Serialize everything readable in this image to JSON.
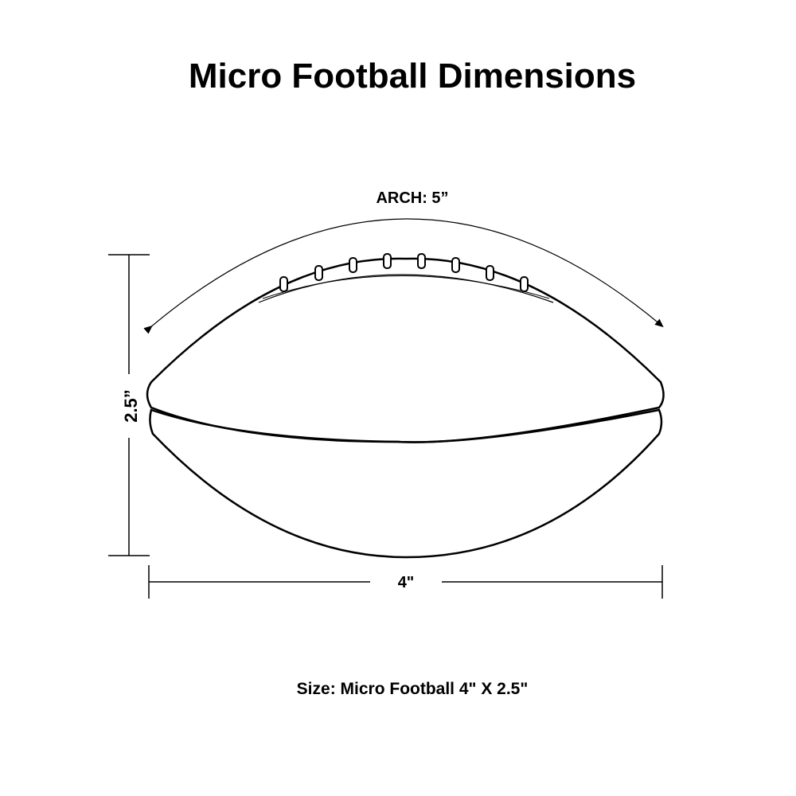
{
  "title": "Micro Football Dimensions",
  "arch_label": "ARCH: 5”",
  "height_label": "2.5”",
  "width_label": "4\"",
  "caption": "Size: Micro Football 4\" X 2.5\""
}
